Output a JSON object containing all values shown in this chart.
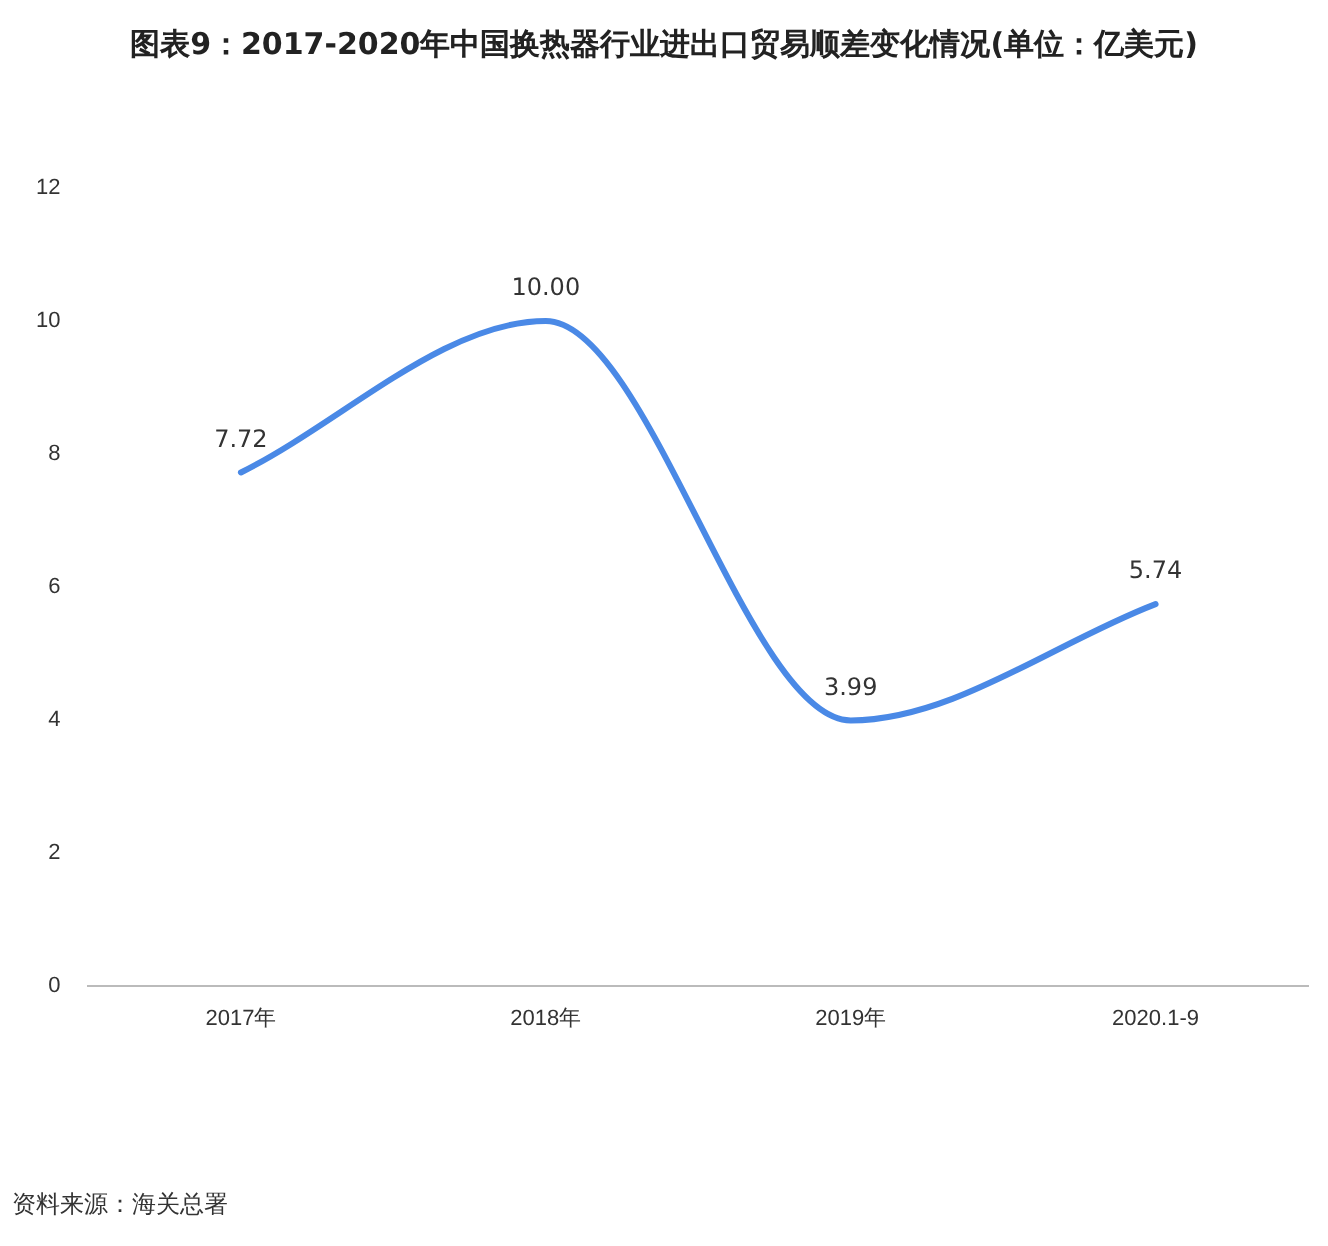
{
  "chart_data": {
    "type": "line",
    "title": "图表9：2017-2020年中国换热器行业进出口贸易顺差变化情况(单位：亿美元)",
    "categories": [
      "2017年",
      "2018年",
      "2019年",
      "2020.1-9"
    ],
    "series": [
      {
        "color": "#4a89e6",
        "values": [
          7.72,
          10.0,
          3.99,
          5.74
        ]
      }
    ],
    "value_labels": [
      "7.72",
      "10.00",
      "3.99",
      "5.74"
    ],
    "ylim": [
      0,
      12
    ],
    "yticks": [
      0,
      2,
      4,
      6,
      8,
      10,
      12
    ],
    "grid": false,
    "legend": false,
    "marker": "none",
    "line_style": "solid",
    "annotations": [
      "资料来源：海关总署"
    ]
  }
}
